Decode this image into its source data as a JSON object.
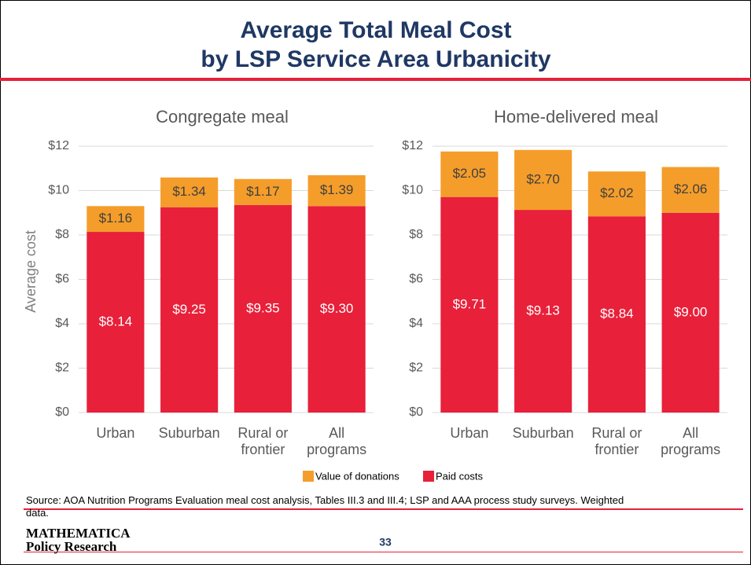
{
  "title_line1": "Average Total Meal Cost",
  "title_line2": "by LSP Service Area Urbanicity",
  "chart_data": [
    {
      "type": "stacked_bar",
      "title": "Congregate meal",
      "y_label": "Average cost",
      "categories": [
        "Urban",
        "Suburban",
        "Rural or frontier",
        "All programs"
      ],
      "series": [
        {
          "name": "Value of donations",
          "color": "#f59d2a",
          "values": [
            1.16,
            1.34,
            1.17,
            1.39
          ],
          "value_labels": [
            "$1.16",
            "$1.34",
            "$1.17",
            "$1.39"
          ]
        },
        {
          "name": "Paid costs",
          "color": "#e8203a",
          "values": [
            8.14,
            9.25,
            9.35,
            9.3
          ],
          "value_labels": [
            "$8.14",
            "$9.25",
            "$9.35",
            "$9.30"
          ]
        }
      ],
      "ylim": [
        0,
        12
      ],
      "yticks": [
        {
          "value": 0,
          "label": "$0"
        },
        {
          "value": 2,
          "label": "$2"
        },
        {
          "value": 4,
          "label": "$4"
        },
        {
          "value": 6,
          "label": "$6"
        },
        {
          "value": 8,
          "label": "$8"
        },
        {
          "value": 10,
          "label": "$10"
        },
        {
          "value": 12,
          "label": "$12"
        }
      ],
      "grid": true
    },
    {
      "type": "stacked_bar",
      "title": "Home-delivered meal",
      "categories": [
        "Urban",
        "Suburban",
        "Rural or frontier",
        "All programs"
      ],
      "series": [
        {
          "name": "Value of donations",
          "color": "#f59d2a",
          "values": [
            2.05,
            2.7,
            2.02,
            2.06
          ],
          "value_labels": [
            "$2.05",
            "$2.70",
            "$2.02",
            "$2.06"
          ]
        },
        {
          "name": "Paid costs",
          "color": "#e8203a",
          "values": [
            9.71,
            9.13,
            8.84,
            9.0
          ],
          "value_labels": [
            "$9.71",
            "$9.13",
            "$8.84",
            "$9.00"
          ]
        }
      ],
      "ylim": [
        0,
        12
      ],
      "yticks": [
        {
          "value": 0,
          "label": "$0"
        },
        {
          "value": 2,
          "label": "$2"
        },
        {
          "value": 4,
          "label": "$4"
        },
        {
          "value": 6,
          "label": "$6"
        },
        {
          "value": 8,
          "label": "$8"
        },
        {
          "value": 10,
          "label": "$10"
        },
        {
          "value": 12,
          "label": "$12"
        }
      ],
      "grid": true
    }
  ],
  "source": "Source: AOA Nutrition Programs Evaluation meal cost analysis, Tables III.3 and III.4; LSP and AAA process study surveys. Weighted data.",
  "logo_line1": "MATHEMATICA",
  "logo_line2": "Policy Research",
  "page_number": "33"
}
